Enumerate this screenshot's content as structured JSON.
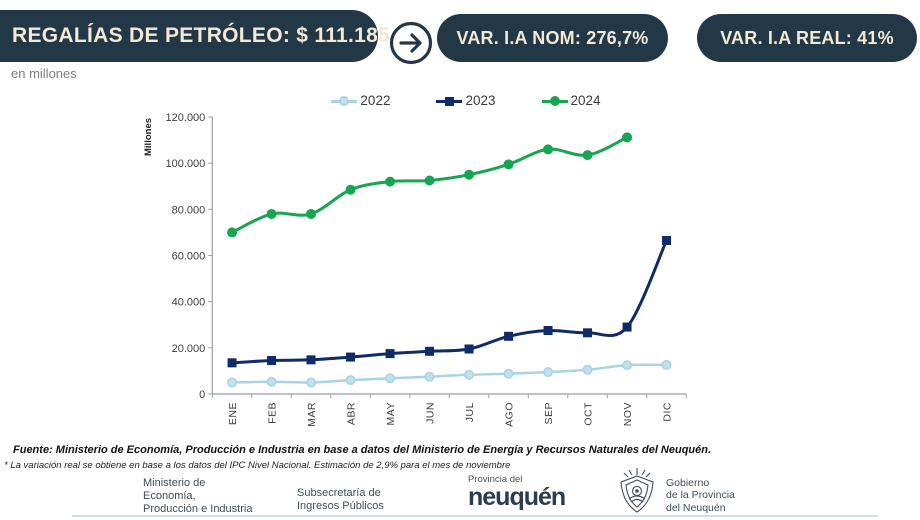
{
  "header": {
    "title_pill": "REGALÍAS DE PETRÓLEO: $ 111.185",
    "pill_nom": "VAR. I.A NOM: 276,7%",
    "pill_real": "VAR. I.A REAL: 41%",
    "subtitle": "en millones"
  },
  "colors": {
    "pill_bg": "#233846",
    "pill_text": "#f2e9d6",
    "series_2022": "#a9d4e5",
    "series_2023": "#0e2b6a",
    "series_2024": "#17a552",
    "axis": "#9aa0a6"
  },
  "chart_data": {
    "type": "line",
    "title": "",
    "xlabel": "",
    "ylabel": "Millones",
    "ylim": [
      0,
      120000
    ],
    "ytick_step": 20000,
    "ytick_labels": [
      "0",
      "20.000",
      "40.000",
      "60.000",
      "80.000",
      "100.000",
      "120.000"
    ],
    "grid": false,
    "legend_position": "top",
    "categories": [
      "ENE",
      "FEB",
      "MAR",
      "ABR",
      "MAY",
      "JUN",
      "JUL",
      "AGO",
      "SEP",
      "OCT",
      "NOV",
      "DIC"
    ],
    "series": [
      {
        "name": "2022",
        "color": "#a9d4e5",
        "marker": "circle",
        "marker_fill": "#c2e0ec",
        "width": 2.5,
        "values": [
          5000,
          5300,
          5000,
          6000,
          6800,
          7500,
          8300,
          8800,
          9500,
          10500,
          12500,
          12600
        ]
      },
      {
        "name": "2023",
        "color": "#0e2b6a",
        "marker": "square",
        "width": 3,
        "values": [
          13500,
          14500,
          14800,
          16000,
          17500,
          18500,
          19500,
          25000,
          27500,
          26500,
          29000,
          66500
        ]
      },
      {
        "name": "2024",
        "color": "#17a552",
        "marker": "circle",
        "width": 3,
        "values": [
          70000,
          78000,
          78000,
          88500,
          92000,
          92500,
          95000,
          99500,
          106000,
          103500,
          111185,
          null
        ]
      }
    ]
  },
  "footer": {
    "source": "Fuente: Ministerio de Economía, Producción e Industria en base a datos del Ministerio de Energía y  Recursos Naturales del Neuquén.",
    "note": "* La variación real se obtiene en base a los datos del IPC Nivel Nacional. Estimación de 2,9% para el mes de noviembre",
    "ministerio_lines": [
      "Ministerio de",
      "Economía,",
      "Producción e Industria"
    ],
    "subsecretaria_lines": [
      "Subsecretaría de",
      "Ingresos Públicos"
    ],
    "provincia_small": "Provincia del",
    "provincia_wordmark": "neuquén",
    "gobierno_lines": [
      "Gobierno",
      "de la Provincia",
      "del Neuquén"
    ]
  }
}
